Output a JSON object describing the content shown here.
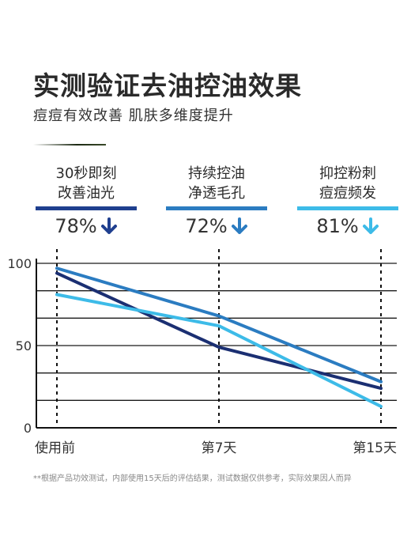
{
  "header": {
    "title": "实测验证去油控油效果",
    "subtitle": "痘痘有效改善 肌肤多维度提升"
  },
  "stats": [
    {
      "line1": "30秒即刻",
      "line2": "改善油光",
      "value": "78%",
      "color": "#1f3f8f"
    },
    {
      "line1": "持续控油",
      "line2": "净透毛孔",
      "value": "72%",
      "color": "#2b7cc1"
    },
    {
      "line1": "抑控粉刺",
      "line2": "痘痘频发",
      "value": "81%",
      "color": "#3dbbe8"
    }
  ],
  "chart_data": {
    "type": "line",
    "categories": [
      "使用前",
      "第7天",
      "第15天"
    ],
    "ylim": [
      0,
      100
    ],
    "yticks": [
      0,
      50,
      100
    ],
    "grid": true,
    "series": [
      {
        "values": [
          94,
          49,
          24
        ],
        "color": "#1b2f72"
      },
      {
        "values": [
          97,
          68,
          28
        ],
        "color": "#2b7cc1"
      },
      {
        "values": [
          81,
          62,
          13
        ],
        "color": "#3dbbe8"
      }
    ]
  },
  "footnote": "**根据产品功效测试，内部使用15天后的评估结果，测试数据仅供参考，实际效果因人而异"
}
